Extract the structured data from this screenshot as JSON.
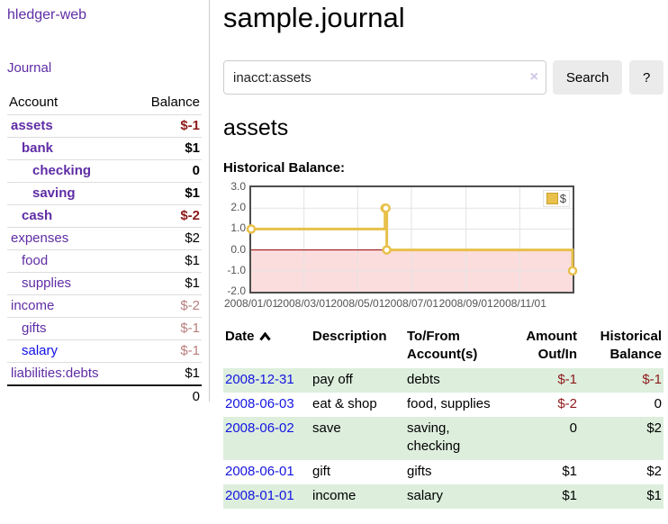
{
  "sidebar": {
    "brand": "hledger-web",
    "nav_journal": "Journal",
    "accounts_table": {
      "header_account": "Account",
      "header_balance": "Balance",
      "rows": [
        {
          "name": "assets",
          "indent": 1,
          "bold": true,
          "balance": "$-1",
          "neg": "strong",
          "link": "purple"
        },
        {
          "name": "bank",
          "indent": 2,
          "bold": true,
          "balance": "$1",
          "neg": "none",
          "link": "purple"
        },
        {
          "name": "checking",
          "indent": 3,
          "bold": true,
          "balance": "0",
          "neg": "none",
          "link": "purple"
        },
        {
          "name": "saving",
          "indent": 3,
          "bold": true,
          "balance": "$1",
          "neg": "none",
          "link": "purple"
        },
        {
          "name": "cash",
          "indent": 2,
          "bold": true,
          "balance": "$-2",
          "neg": "strong",
          "link": "purple"
        },
        {
          "name": "expenses",
          "indent": 1,
          "bold": false,
          "balance": "$2",
          "neg": "none",
          "link": "purple"
        },
        {
          "name": "food",
          "indent": 2,
          "bold": false,
          "balance": "$1",
          "neg": "none",
          "link": "purple"
        },
        {
          "name": "supplies",
          "indent": 2,
          "bold": false,
          "balance": "$1",
          "neg": "none",
          "link": "purple"
        },
        {
          "name": "income",
          "indent": 1,
          "bold": false,
          "balance": "$-2",
          "neg": "soft",
          "link": "purple"
        },
        {
          "name": "gifts",
          "indent": 2,
          "bold": false,
          "balance": "$-1",
          "neg": "soft",
          "link": "purple"
        },
        {
          "name": "salary",
          "indent": 2,
          "bold": false,
          "balance": "$-1",
          "neg": "soft",
          "link": "blue"
        },
        {
          "name": "liabilities:debts",
          "indent": 1,
          "bold": false,
          "balance": "$1",
          "neg": "none",
          "link": "purple"
        }
      ],
      "total": "0"
    }
  },
  "header": {
    "title": "sample.journal"
  },
  "search": {
    "value": "inacct:assets",
    "clear_symbol": "×",
    "button_label": "Search",
    "help_label": "?"
  },
  "account_page": {
    "heading": "assets",
    "chart_title": "Historical Balance:"
  },
  "chart_data": {
    "type": "line",
    "step": true,
    "title": "Historical Balance",
    "x_range": [
      "2008-01-01",
      "2008-12-31"
    ],
    "ylim": [
      -2,
      3
    ],
    "y_ticks": [
      "3.0",
      "2.0",
      "1.0",
      "0.0",
      "-1.0",
      "-2.0"
    ],
    "x_ticks": [
      "2008/01/01",
      "2008/03/01",
      "2008/05/01",
      "2008/07/01",
      "2008/09/01",
      "2008/11/01"
    ],
    "series": [
      {
        "name": "$",
        "color": "#e8c04a",
        "points": [
          [
            "2008-01-01",
            1
          ],
          [
            "2008-06-01",
            2
          ],
          [
            "2008-06-02",
            2
          ],
          [
            "2008-06-03",
            0
          ],
          [
            "2008-12-31",
            -1
          ]
        ]
      }
    ],
    "legend": {
      "label": "$",
      "position": "top-right"
    },
    "grid": true,
    "gridline_color": "#e3e3e3",
    "zero_line_color": "#990000",
    "negative_region_color": "#fcdddd",
    "border_color": "#4d4d4d"
  },
  "register_table": {
    "headers": {
      "date": "Date",
      "description": "Description",
      "accounts": "To/From Account(s)",
      "amount": "Amount Out/In",
      "balance": "Historical Balance"
    },
    "sort_icon": "caret-up",
    "rows": [
      {
        "date": "2008-12-31",
        "description": "pay off",
        "accounts": "debts",
        "amount": "$-1",
        "amount_neg": true,
        "balance": "$-1",
        "balance_neg": true
      },
      {
        "date": "2008-06-03",
        "description": "eat & shop",
        "accounts": "food, supplies",
        "amount": "$-2",
        "amount_neg": true,
        "balance": "0",
        "balance_neg": false
      },
      {
        "date": "2008-06-02",
        "description": "save",
        "accounts": "saving, checking",
        "amount": "0",
        "amount_neg": false,
        "balance": "$2",
        "balance_neg": false
      },
      {
        "date": "2008-06-01",
        "description": "gift",
        "accounts": "gifts",
        "amount": "$1",
        "amount_neg": false,
        "balance": "$2",
        "balance_neg": false
      },
      {
        "date": "2008-01-01",
        "description": "income",
        "accounts": "salary",
        "amount": "$1",
        "amount_neg": false,
        "balance": "$1",
        "balance_neg": false
      }
    ]
  }
}
